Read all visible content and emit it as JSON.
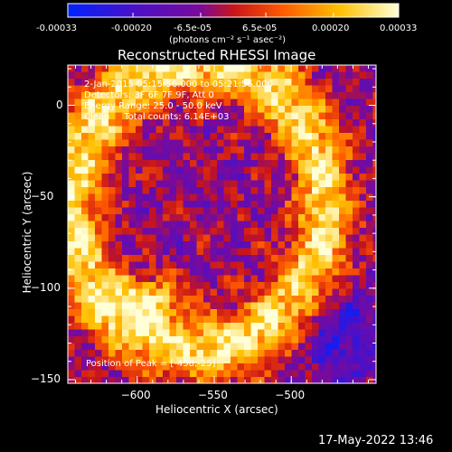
{
  "colorbar": {
    "tick_labels": [
      "-0.00033",
      "-0.00020",
      "-6.5e-05",
      "6.5e-05",
      "0.00020",
      "0.00033"
    ],
    "range": [
      -0.00033,
      0.00033
    ],
    "unit_label": "(photons cm⁻² s⁻¹ asec⁻²)",
    "colormap": [
      "#0022ff",
      "#4a10c8",
      "#7a0a9a",
      "#c8141a",
      "#ff5a00",
      "#ffc000",
      "#ffffd8"
    ]
  },
  "chart_data": {
    "type": "heatmap",
    "title": "Reconstructed RHESSI Image",
    "xlabel": "Heliocentric X (arcsec)",
    "ylabel": "Heliocentric Y (arcsec)",
    "xlim": [
      -645,
      -445
    ],
    "ylim": [
      -152,
      22
    ],
    "x_ticks": [
      -600,
      -550,
      -500
    ],
    "y_ticks": [
      -150,
      -100,
      -50,
      0
    ],
    "annotations": {
      "time": "2-Jan-2015 05:15:56.000 to 05:21:56.000",
      "detectors": "Detectors: 3F 6F 7F 9F, Att 0",
      "energy": "Energy Range: 25.0 - 50.0 keV",
      "method": "Clean     Total counts: 6.14E+03",
      "peak": "Position of Peak = [-458,-25]"
    },
    "peak_position": [
      -458,
      -25
    ],
    "structure": "bright arc-shaped ring of emission with dim purple/blue background; bluest region lower right"
  },
  "footer": {
    "timestamp": "17-May-2022 13:46"
  }
}
